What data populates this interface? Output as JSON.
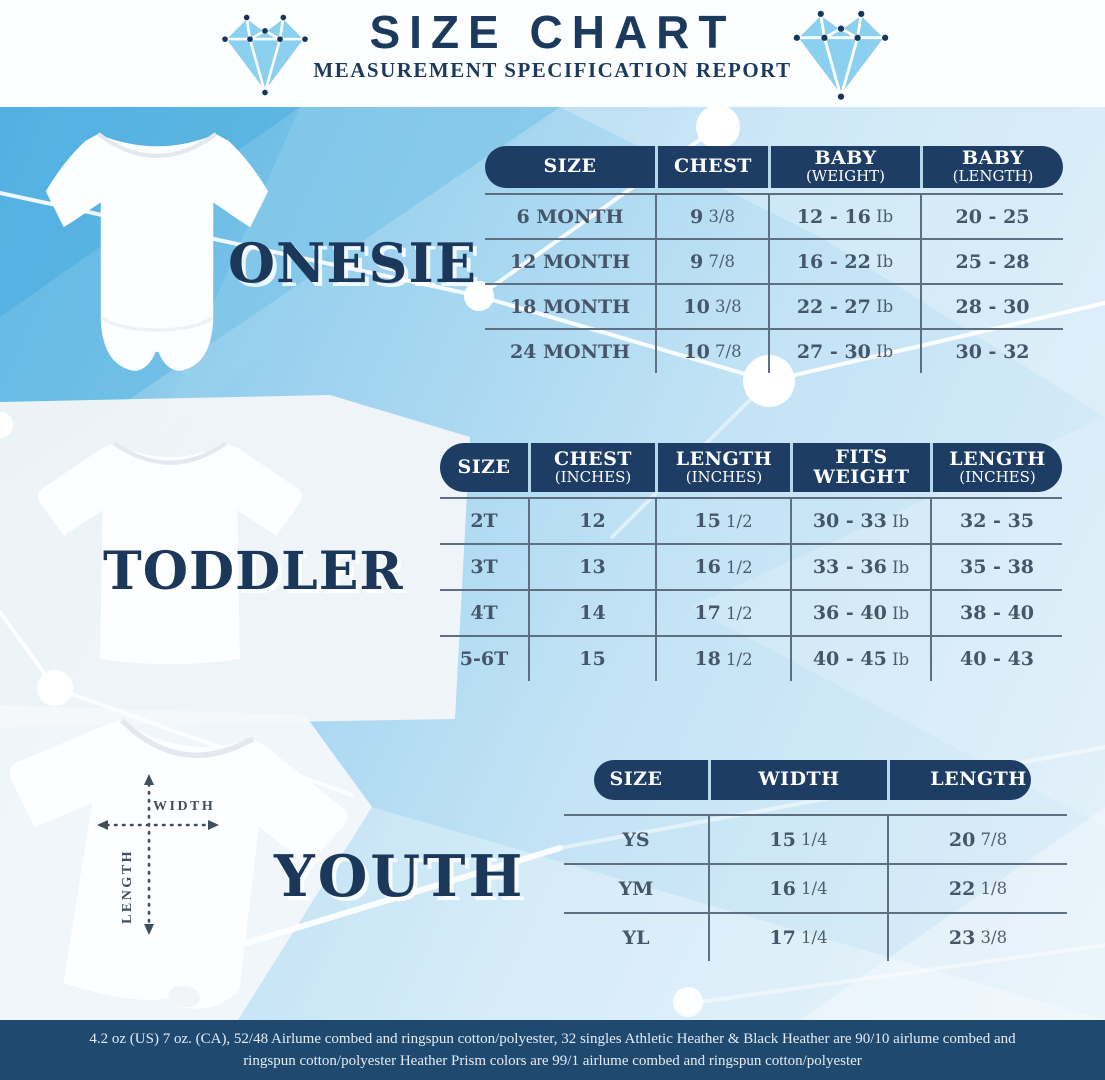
{
  "header": {
    "title": "SIZE CHART",
    "subtitle": "MEASUREMENT SPECIFICATION REPORT"
  },
  "sections": [
    {
      "id": "onesie",
      "label": "ONESIE",
      "table": {
        "columns": [
          {
            "label": "SIZE",
            "sub": ""
          },
          {
            "label": "CHEST",
            "sub": ""
          },
          {
            "label": "BABY",
            "sub": "(WEIGHT)"
          },
          {
            "label": "BABY",
            "sub": "(LENGTH)"
          }
        ],
        "rows": [
          [
            "6 MONTH",
            "9 3/8",
            "12 - 16 Ib",
            "20 - 25"
          ],
          [
            "12 MONTH",
            "9 7/8",
            "16 - 22 Ib",
            "25 - 28"
          ],
          [
            "18 MONTH",
            "10 3/8",
            "22 - 27 Ib",
            "28 - 30"
          ],
          [
            "24 MONTH",
            "10 7/8",
            "27 - 30 Ib",
            "30 - 32"
          ]
        ]
      }
    },
    {
      "id": "toddler",
      "label": "TODDLER",
      "table": {
        "columns": [
          {
            "label": "SIZE",
            "sub": ""
          },
          {
            "label": "CHEST",
            "sub": "(INCHES)"
          },
          {
            "label": "LENGTH",
            "sub": "(INCHES)"
          },
          {
            "label": "FITS",
            "sub": "WEIGHT"
          },
          {
            "label": "LENGTH",
            "sub": "(INCHES)"
          }
        ],
        "rows": [
          [
            "2T",
            "12",
            "15 1/2",
            "30 - 33 Ib",
            "32 - 35"
          ],
          [
            "3T",
            "13",
            "16 1/2",
            "33 - 36 Ib",
            "35 - 38"
          ],
          [
            "4T",
            "14",
            "17 1/2",
            "36 - 40 Ib",
            "38 - 40"
          ],
          [
            "5-6T",
            "15",
            "18 1/2",
            "40 - 45 Ib",
            "40 - 43"
          ]
        ]
      }
    },
    {
      "id": "youth",
      "label": "YOUTH",
      "table": {
        "columns": [
          {
            "label": "SIZE",
            "sub": ""
          },
          {
            "label": "WIDTH",
            "sub": ""
          },
          {
            "label": "LENGTH",
            "sub": ""
          }
        ],
        "rows": [
          [
            "YS",
            "15 1/4",
            "20 7/8"
          ],
          [
            "YM",
            "16 1/4",
            "22 1/8"
          ],
          [
            "YL",
            "17 1/4",
            "23 3/8"
          ]
        ]
      }
    }
  ],
  "measurement_labels": {
    "width": "WIDTH",
    "length": "LENGTH"
  },
  "footer": {
    "line1": "4.2 oz (US) 7 oz. (CA), 52/48 Airlume combed and ringspun cotton/polyester, 32 singles Athletic Heather & Black Heather are 90/10 airlume combed and",
    "line2": "ringspun cotton/polyester Heather Prism colors are 99/1 airlume combed and ringspun cotton/polyester"
  },
  "colors": {
    "navy_text": "#1c3a5e",
    "header_pill": "#1d3d64",
    "cell_text": "#46566a",
    "table_line": "#5d6f81",
    "footer_bg": "#204970",
    "diamond_blue": "#8bd0ee",
    "bg_deep_blue": "#6cbde6",
    "bg_light_blue": "#e0eff9"
  }
}
